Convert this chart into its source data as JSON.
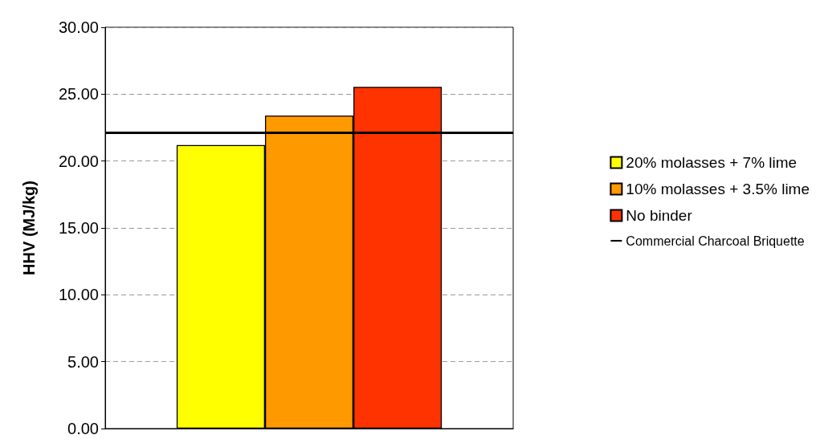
{
  "chart_data": {
    "type": "bar",
    "ylabel": "HHV (MJ/kg)",
    "categories": [
      null
    ],
    "series": [
      {
        "name": "20% molasses + 7% lime",
        "color": "#ffff00",
        "values": [
          21.2
        ]
      },
      {
        "name": "10% molasses + 3.5% lime",
        "color": "#ff9900",
        "values": [
          23.4
        ]
      },
      {
        "name": "No binder",
        "color": "#ff3300",
        "values": [
          25.55
        ]
      }
    ],
    "ref_lines": [
      {
        "axis": "y",
        "value": 22.1,
        "label": "Commercial Charcoal Briquette",
        "color": "#000000",
        "line_style": "solid"
      }
    ],
    "ylim": [
      0,
      30
    ],
    "yticks": [
      {
        "value": 0,
        "label": "0.00"
      },
      {
        "value": 5,
        "label": "5.00"
      },
      {
        "value": 10,
        "label": "10.00"
      },
      {
        "value": 15,
        "label": "15.00"
      },
      {
        "value": 20,
        "label": "20.00"
      },
      {
        "value": 25,
        "label": "25.00"
      },
      {
        "value": 30,
        "label": "30.00"
      }
    ],
    "grid": "y",
    "legend": "right"
  }
}
